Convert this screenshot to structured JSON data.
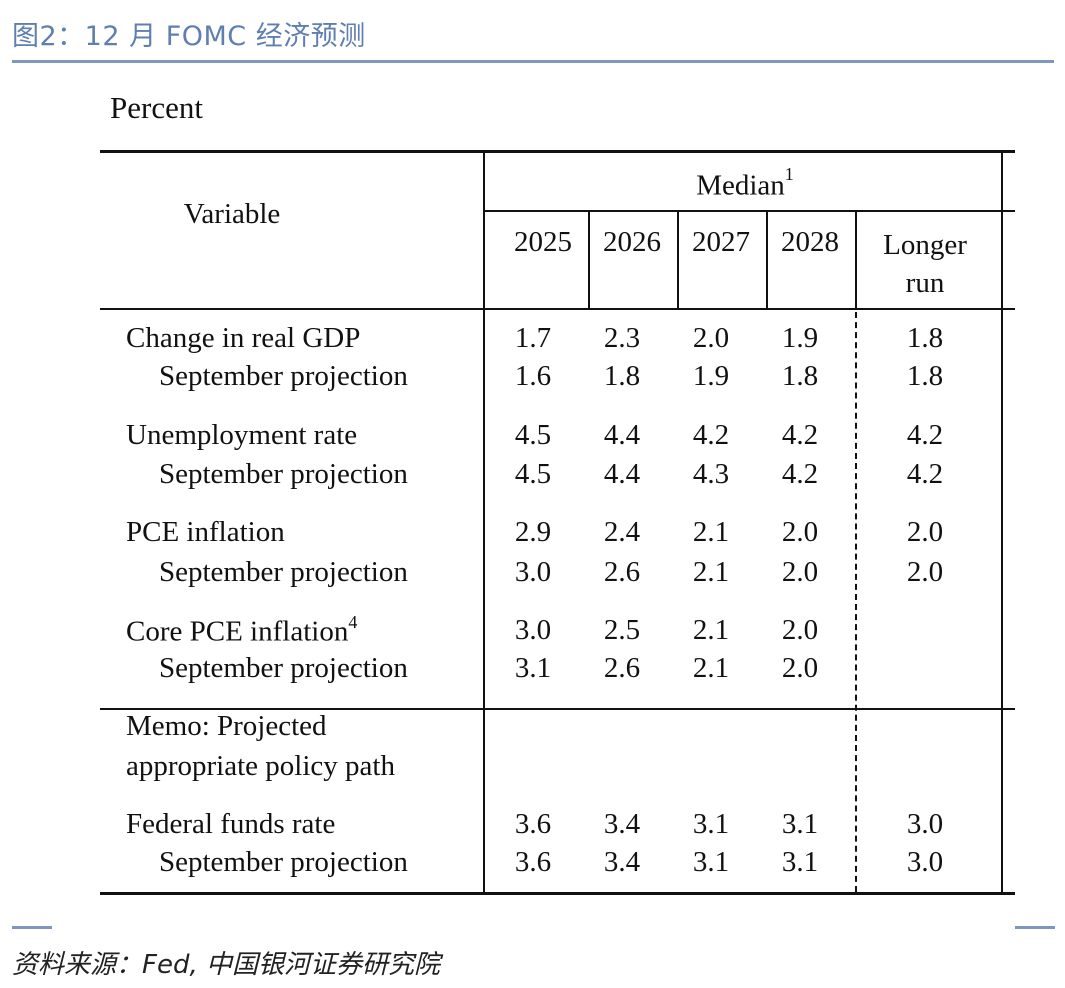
{
  "figure": {
    "title": "图2：12 月 FOMC 经济预测",
    "unit": "Percent",
    "source": "资料来源：Fed, 中国银河证券研究院"
  },
  "table": {
    "variable_header": "Variable",
    "median_header": "Median",
    "median_footnote": "1",
    "years": [
      "2025",
      "2026",
      "2027",
      "2028"
    ],
    "longer_run_line1": "Longer",
    "longer_run_line2": "run",
    "rows": [
      {
        "label": "Change in real GDP",
        "footnote": "",
        "values": [
          "1.7",
          "2.3",
          "2.0",
          "1.9"
        ],
        "longer_run": "1.8"
      },
      {
        "label": "September projection",
        "footnote": "",
        "values": [
          "1.6",
          "1.8",
          "1.9",
          "1.8"
        ],
        "longer_run": "1.8"
      },
      {
        "label": "Unemployment rate",
        "footnote": "",
        "values": [
          "4.5",
          "4.4",
          "4.2",
          "4.2"
        ],
        "longer_run": "4.2"
      },
      {
        "label": "September projection",
        "footnote": "",
        "values": [
          "4.5",
          "4.4",
          "4.3",
          "4.2"
        ],
        "longer_run": "4.2"
      },
      {
        "label": "PCE inflation",
        "footnote": "",
        "values": [
          "2.9",
          "2.4",
          "2.1",
          "2.0"
        ],
        "longer_run": "2.0"
      },
      {
        "label": "September projection",
        "footnote": "",
        "values": [
          "3.0",
          "2.6",
          "2.1",
          "2.0"
        ],
        "longer_run": "2.0"
      },
      {
        "label": "Core PCE inflation",
        "footnote": "4",
        "values": [
          "3.0",
          "2.5",
          "2.1",
          "2.0"
        ],
        "longer_run": ""
      },
      {
        "label": "September projection",
        "footnote": "",
        "values": [
          "3.1",
          "2.6",
          "2.1",
          "2.0"
        ],
        "longer_run": ""
      }
    ],
    "memo_line1": "Memo: Projected",
    "memo_line2": "appropriate policy path",
    "memo_rows": [
      {
        "label": "Federal funds rate",
        "values": [
          "3.6",
          "3.4",
          "3.1",
          "3.1"
        ],
        "longer_run": "3.0"
      },
      {
        "label": "September projection",
        "values": [
          "3.6",
          "3.4",
          "3.1",
          "3.1"
        ],
        "longer_run": "3.0"
      }
    ]
  }
}
